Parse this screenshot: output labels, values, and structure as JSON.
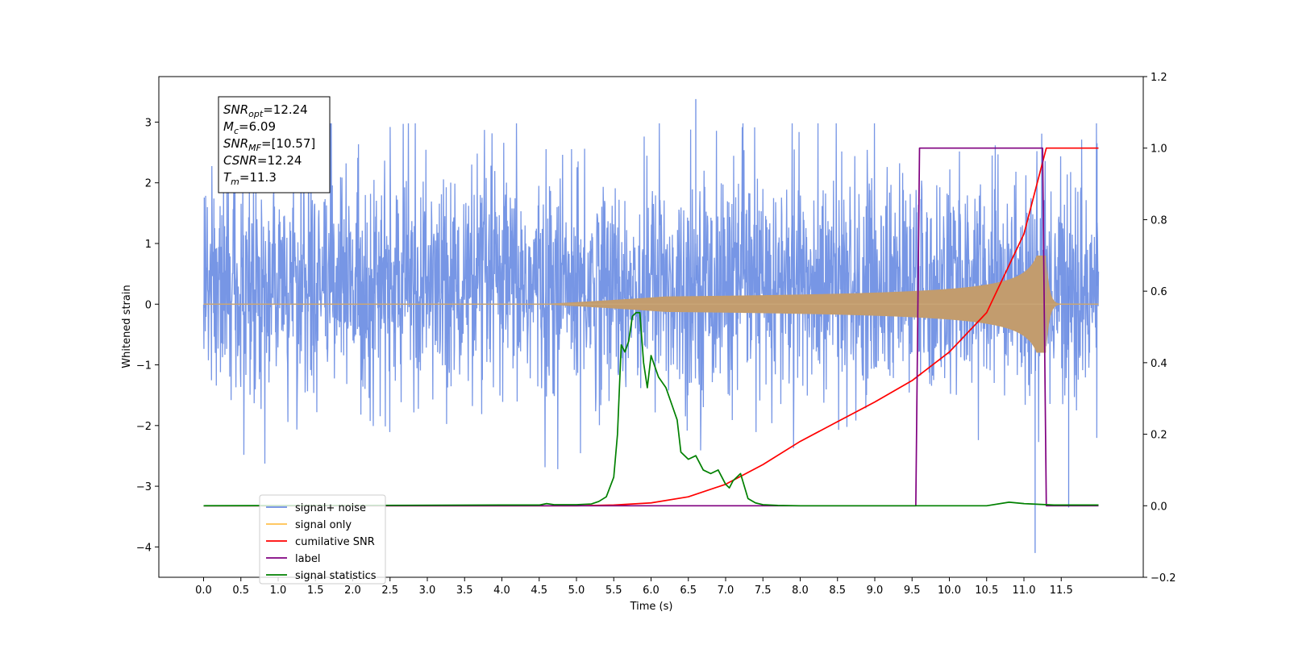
{
  "chart_data": {
    "type": "line",
    "xlabel": "Time (s)",
    "ylabel_left": "Whitened strain",
    "xlim": [
      -0.6,
      12.6
    ],
    "ylim_left": [
      -4.5,
      3.75
    ],
    "ylim_right": [
      -0.2,
      1.2
    ],
    "x_ticks": [
      "0.0",
      "0.5",
      "1.0",
      "1.5",
      "2.0",
      "2.5",
      "3.0",
      "3.5",
      "4.0",
      "4.5",
      "5.0",
      "5.5",
      "6.0",
      "6.5",
      "7.0",
      "7.5",
      "8.0",
      "8.5",
      "9.0",
      "9.5",
      "10.0",
      "10.5",
      "11.0",
      "11.5"
    ],
    "y_ticks_left": [
      "3",
      "2",
      "1",
      "0",
      "−1",
      "−2",
      "−3",
      "−4"
    ],
    "y_ticks_right": [
      "1.2",
      "1.0",
      "0.8",
      "0.6",
      "0.4",
      "0.2",
      "0.0",
      "−0.2"
    ],
    "annotations": [
      {
        "main": "SNR",
        "sub": "opt",
        "rest": "=12.24"
      },
      {
        "main": "M",
        "sub": "c",
        "rest": "=6.09"
      },
      {
        "main": "SNR",
        "sub": "MF",
        "rest": "=[10.57]"
      },
      {
        "main": "CSNR",
        "sub": "",
        "rest": "=12.24"
      },
      {
        "main": "T",
        "sub": "m",
        "rest": "=11.3"
      }
    ],
    "legend_placement": "lower-left",
    "series": [
      {
        "name": "signal+ noise",
        "color": "#6b8de3",
        "axis": "left",
        "kind": "noise",
        "x_range": [
          0.0,
          12.0
        ],
        "y_range": [
          -4.1,
          3.38
        ]
      },
      {
        "name": "signal only",
        "color": "#ffc04d",
        "axis": "left",
        "kind": "chirp",
        "x_range": [
          0.0,
          12.0
        ],
        "peak_amplitude": 0.8,
        "merger_time": 11.3
      },
      {
        "name": "cumilative SNR",
        "color": "#ff0000",
        "axis": "right",
        "x": [
          0.0,
          5.0,
          5.5,
          6.0,
          6.5,
          7.0,
          7.5,
          8.0,
          8.5,
          9.0,
          9.5,
          10.0,
          10.5,
          11.0,
          11.2,
          11.3,
          11.45,
          12.0
        ],
        "y": [
          0.0,
          0.0,
          0.002,
          0.008,
          0.025,
          0.06,
          0.115,
          0.18,
          0.235,
          0.29,
          0.35,
          0.43,
          0.54,
          0.76,
          0.92,
          1.0,
          1.0,
          1.0
        ]
      },
      {
        "name": "label",
        "color": "#800080",
        "axis": "right",
        "x": [
          0.0,
          9.55,
          9.6,
          9.65,
          11.25,
          11.3,
          11.35,
          12.0
        ],
        "y": [
          0.0,
          0.0,
          1.0,
          1.0,
          1.0,
          0.0,
          0.0,
          0.0
        ]
      },
      {
        "name": "signal statistics",
        "color": "#008000",
        "axis": "right",
        "x": [
          0.0,
          4.0,
          4.5,
          4.6,
          4.7,
          5.0,
          5.2,
          5.3,
          5.4,
          5.5,
          5.55,
          5.6,
          5.65,
          5.7,
          5.75,
          5.8,
          5.85,
          5.9,
          5.95,
          6.0,
          6.05,
          6.1,
          6.2,
          6.3,
          6.35,
          6.4,
          6.5,
          6.6,
          6.7,
          6.8,
          6.9,
          7.0,
          7.05,
          7.1,
          7.2,
          7.3,
          7.4,
          7.5,
          7.7,
          8.0,
          10.5,
          10.8,
          11.0,
          11.4,
          12.0
        ],
        "y": [
          0.0,
          0.002,
          0.002,
          0.006,
          0.003,
          0.003,
          0.005,
          0.012,
          0.025,
          0.08,
          0.2,
          0.45,
          0.43,
          0.46,
          0.53,
          0.54,
          0.54,
          0.4,
          0.33,
          0.42,
          0.39,
          0.36,
          0.33,
          0.27,
          0.24,
          0.15,
          0.13,
          0.14,
          0.1,
          0.09,
          0.1,
          0.06,
          0.05,
          0.07,
          0.09,
          0.02,
          0.008,
          0.003,
          0.001,
          0.0,
          0.0,
          0.01,
          0.006,
          0.002,
          0.002
        ]
      }
    ]
  }
}
